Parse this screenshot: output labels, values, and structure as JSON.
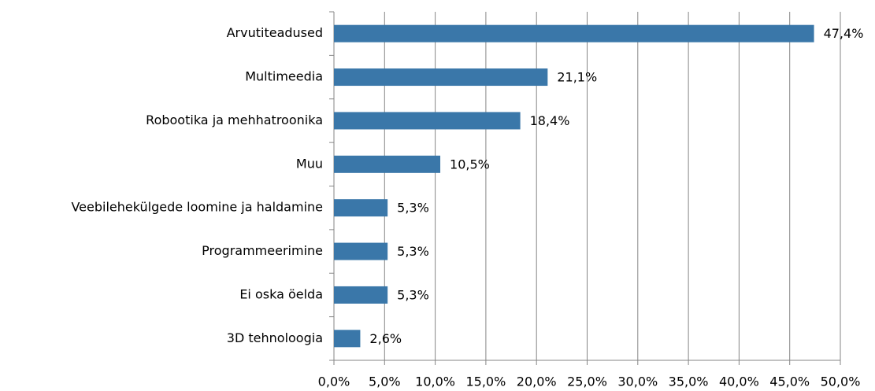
{
  "chart_data": {
    "type": "barh",
    "categories": [
      "Arvutiteadused",
      "Multimeedia",
      "Robootika ja mehhatroonika",
      "Muu",
      "Veebilehekülgede loomine ja haldamine",
      "Programmeerimine",
      "Ei oska öelda",
      "3D tehnoloogia"
    ],
    "values": [
      47.4,
      21.1,
      18.4,
      10.5,
      5.3,
      5.3,
      5.3,
      2.6
    ],
    "value_labels": [
      "47,4%",
      "21,1%",
      "18,4%",
      "10,5%",
      "5,3%",
      "5,3%",
      "5,3%",
      "2,6%"
    ],
    "color": "#3a77a9",
    "xlim": [
      0,
      50
    ],
    "xticks": [
      {
        "value": 0,
        "label": "0,0%"
      },
      {
        "value": 5,
        "label": "5,0%"
      },
      {
        "value": 10,
        "label": "10,0%"
      },
      {
        "value": 15,
        "label": "15,0%"
      },
      {
        "value": 20,
        "label": "20,0%"
      },
      {
        "value": 25,
        "label": "25,0%"
      },
      {
        "value": 30,
        "label": "30,0%"
      },
      {
        "value": 35,
        "label": "35,0%"
      },
      {
        "value": 40,
        "label": "40,0%"
      },
      {
        "value": 45,
        "label": "45,0%"
      },
      {
        "value": 50,
        "label": "50,0%"
      }
    ],
    "grid": true
  }
}
